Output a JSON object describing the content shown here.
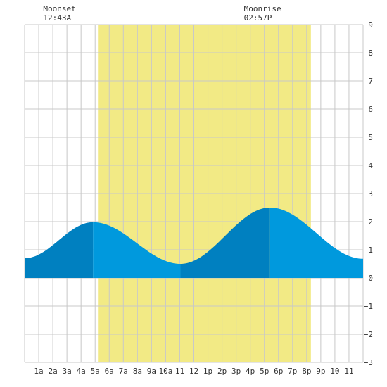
{
  "moon_events": [
    {
      "label": "Moonset",
      "time": "12:43A",
      "hour": 0.717
    },
    {
      "label": "Moonrise",
      "time": "02:57P",
      "hour": 14.95
    }
  ],
  "chart_data": {
    "type": "area",
    "title": "",
    "xlabel": "",
    "ylabel": "",
    "xlim": [
      0,
      24
    ],
    "ylim": [
      -3,
      9
    ],
    "grid": true,
    "x_ticks": [
      {
        "hour": 1,
        "label": "1a"
      },
      {
        "hour": 2,
        "label": "2a"
      },
      {
        "hour": 3,
        "label": "3a"
      },
      {
        "hour": 4,
        "label": "4a"
      },
      {
        "hour": 5,
        "label": "5a"
      },
      {
        "hour": 6,
        "label": "6a"
      },
      {
        "hour": 7,
        "label": "7a"
      },
      {
        "hour": 8,
        "label": "8a"
      },
      {
        "hour": 9,
        "label": "9a"
      },
      {
        "hour": 10,
        "label": "10a"
      },
      {
        "hour": 11,
        "label": "11"
      },
      {
        "hour": 12,
        "label": "12"
      },
      {
        "hour": 13,
        "label": "1p"
      },
      {
        "hour": 14,
        "label": "2p"
      },
      {
        "hour": 15,
        "label": "3p"
      },
      {
        "hour": 16,
        "label": "4p"
      },
      {
        "hour": 17,
        "label": "5p"
      },
      {
        "hour": 18,
        "label": "6p"
      },
      {
        "hour": 19,
        "label": "7p"
      },
      {
        "hour": 20,
        "label": "8p"
      },
      {
        "hour": 21,
        "label": "9p"
      },
      {
        "hour": 22,
        "label": "10"
      },
      {
        "hour": 23,
        "label": "11"
      }
    ],
    "y_ticks": [
      {
        "value": 9,
        "label": "9"
      },
      {
        "value": 8,
        "label": "8"
      },
      {
        "value": 7,
        "label": "7"
      },
      {
        "value": 6,
        "label": "6"
      },
      {
        "value": 5,
        "label": "5"
      },
      {
        "value": 4,
        "label": "4"
      },
      {
        "value": 3,
        "label": "3"
      },
      {
        "value": 2,
        "label": "2"
      },
      {
        "value": 1,
        "label": "1"
      },
      {
        "value": 0,
        "label": "0"
      },
      {
        "value": -1,
        "label": "−1"
      },
      {
        "value": -2,
        "label": "−2"
      },
      {
        "value": -3,
        "label": "−3"
      }
    ],
    "daylight": {
      "start": 5.2,
      "end": 20.3
    },
    "tide_extremes": [
      {
        "hour": 0,
        "height": 0.7
      },
      {
        "hour": 4.85,
        "height": 1.98
      },
      {
        "hour": 11.05,
        "height": 0.5
      },
      {
        "hour": 17.4,
        "height": 2.5
      },
      {
        "hour": 24,
        "height": 0.68
      }
    ],
    "colors": {
      "daylight": "#f2ea85",
      "tide_rising": "#0080c0",
      "tide_falling": "#0099dd",
      "grid": "#c8c8c8",
      "background": "#ffffff"
    }
  }
}
